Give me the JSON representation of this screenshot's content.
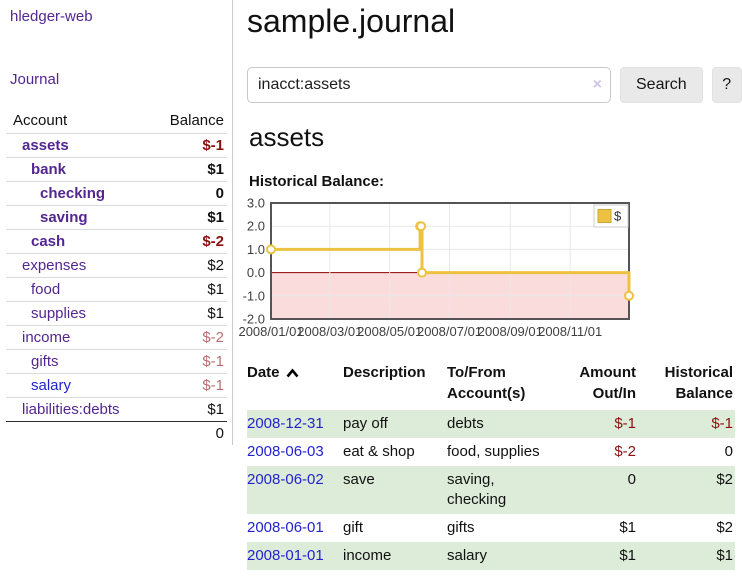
{
  "colors": {
    "link_purple": "#53278f",
    "link_blue": "#2323cd",
    "negative_strong": "#8b1111",
    "negative_soft": "#b96f72",
    "row_stripe_green": "#ddecd8",
    "series_gold": "#edc240",
    "zero_line": "#8b0000",
    "negative_area_fill": "#fbdcdc",
    "grid_line": "#e8e8e8",
    "chart_border": "#545454"
  },
  "sidebar": {
    "app_title": "hledger-web",
    "journal_link": "Journal",
    "accounts_header": {
      "account": "Account",
      "balance": "Balance"
    },
    "accounts": [
      {
        "name": "assets",
        "depth": 1,
        "bold": true,
        "balance": "$-1",
        "balance_style": "neg-strong"
      },
      {
        "name": "bank",
        "depth": 2,
        "bold": true,
        "balance": "$1",
        "balance_style": "pos"
      },
      {
        "name": "checking",
        "depth": 3,
        "bold": true,
        "balance": "0",
        "balance_style": "pos"
      },
      {
        "name": "saving",
        "depth": 3,
        "bold": true,
        "balance": "$1",
        "balance_style": "pos"
      },
      {
        "name": "cash",
        "depth": 2,
        "bold": true,
        "balance": "$-2",
        "balance_style": "neg-strong"
      },
      {
        "name": "expenses",
        "depth": 1,
        "bold": false,
        "balance": "$2",
        "balance_style": "pos"
      },
      {
        "name": "food",
        "depth": 2,
        "bold": false,
        "balance": "$1",
        "balance_style": "pos"
      },
      {
        "name": "supplies",
        "depth": 2,
        "bold": false,
        "balance": "$1",
        "balance_style": "pos"
      },
      {
        "name": "income",
        "depth": 1,
        "bold": false,
        "balance": "$-2",
        "balance_style": "neg-soft"
      },
      {
        "name": "gifts",
        "depth": 2,
        "bold": false,
        "balance": "$-1",
        "balance_style": "neg-soft"
      },
      {
        "name": "salary",
        "depth": 2,
        "bold": false,
        "blue": true,
        "balance": "$-1",
        "balance_style": "neg-soft"
      },
      {
        "name": "liabilities:debts",
        "depth": 1,
        "bold": false,
        "balance": "$1",
        "balance_style": "pos"
      }
    ],
    "total": "0"
  },
  "header": {
    "title": "sample.journal"
  },
  "search": {
    "value": "inacct:assets",
    "clear_icon": "×",
    "button_label": "Search",
    "help_label": "?"
  },
  "account_page": {
    "heading": "assets",
    "chart_label": "Historical Balance:"
  },
  "chart_data": {
    "type": "line",
    "title": "Historical Balance of assets",
    "step": true,
    "xrange": [
      "2008-01-01",
      "2008-12-31"
    ],
    "ylim": [
      -2,
      3
    ],
    "yticks": [
      {
        "value": 3,
        "label": "3.0"
      },
      {
        "value": 2,
        "label": "2.0"
      },
      {
        "value": 1,
        "label": "1.0"
      },
      {
        "value": 0,
        "label": "0.0"
      },
      {
        "value": -1,
        "label": "-1.0"
      },
      {
        "value": -2,
        "label": "-2.0"
      }
    ],
    "xticks": [
      {
        "date": "2008-01-01",
        "label": "2008/01/01"
      },
      {
        "date": "2008-03-01",
        "label": "2008/03/01"
      },
      {
        "date": "2008-05-01",
        "label": "2008/05/01"
      },
      {
        "date": "2008-07-01",
        "label": "2008/07/01"
      },
      {
        "date": "2008-09-01",
        "label": "2008/09/01"
      },
      {
        "date": "2008-11-01",
        "label": "2008/11/01"
      }
    ],
    "series": [
      {
        "name": "$",
        "color": "#edc240",
        "points": [
          [
            "2008-01-01",
            1
          ],
          [
            "2008-06-01",
            2
          ],
          [
            "2008-06-02",
            2
          ],
          [
            "2008-06-03",
            0
          ],
          [
            "2008-12-31",
            -1
          ]
        ]
      }
    ],
    "legend": {
      "label": "$",
      "position": "top-right"
    },
    "grid": true
  },
  "register": {
    "headers": [
      {
        "label": "Date",
        "sorted": "asc",
        "align": "left"
      },
      {
        "label": "Description",
        "align": "left"
      },
      {
        "label": "To/From Account(s)",
        "align": "left"
      },
      {
        "label": "Amount Out/In",
        "align": "right"
      },
      {
        "label": "Historical Balance",
        "align": "right"
      }
    ],
    "rows": [
      {
        "date": "2008-12-31",
        "description": "pay off",
        "accounts": "debts",
        "amount": "$-1",
        "amount_neg": true,
        "balance": "$-1",
        "balance_neg": true
      },
      {
        "date": "2008-06-03",
        "description": "eat & shop",
        "accounts": "food, supplies",
        "amount": "$-2",
        "amount_neg": true,
        "balance": "0",
        "balance_neg": false
      },
      {
        "date": "2008-06-02",
        "description": "save",
        "accounts": "saving, checking",
        "amount": "0",
        "amount_neg": false,
        "balance": "$2",
        "balance_neg": false
      },
      {
        "date": "2008-06-01",
        "description": "gift",
        "accounts": "gifts",
        "amount": "$1",
        "amount_neg": false,
        "balance": "$2",
        "balance_neg": false
      },
      {
        "date": "2008-01-01",
        "description": "income",
        "accounts": "salary",
        "amount": "$1",
        "amount_neg": false,
        "balance": "$1",
        "balance_neg": false
      }
    ]
  }
}
